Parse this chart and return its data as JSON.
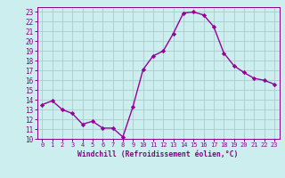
{
  "x": [
    0,
    1,
    2,
    3,
    4,
    5,
    6,
    7,
    8,
    9,
    10,
    11,
    12,
    13,
    14,
    15,
    16,
    17,
    18,
    19,
    20,
    21,
    22,
    23
  ],
  "y": [
    13.5,
    13.9,
    13.0,
    12.6,
    11.5,
    11.8,
    11.1,
    11.1,
    10.2,
    13.3,
    17.1,
    18.5,
    19.0,
    20.8,
    22.9,
    23.0,
    22.7,
    21.5,
    18.8,
    17.5,
    16.8,
    16.2,
    16.0,
    15.6
  ],
  "line_color": "#990099",
  "marker": "D",
  "marker_size": 2.2,
  "line_width": 1.0,
  "bg_color": "#cceeee",
  "grid_color": "#aacccc",
  "xlabel": "Windchill (Refroidissement éolien,°C)",
  "xlabel_color": "#880088",
  "tick_color": "#880088",
  "ylim": [
    10,
    23.5
  ],
  "xlim": [
    -0.5,
    23.5
  ],
  "yticks": [
    10,
    11,
    12,
    13,
    14,
    15,
    16,
    17,
    18,
    19,
    20,
    21,
    22,
    23
  ],
  "xticks": [
    0,
    1,
    2,
    3,
    4,
    5,
    6,
    7,
    8,
    9,
    10,
    11,
    12,
    13,
    14,
    15,
    16,
    17,
    18,
    19,
    20,
    21,
    22,
    23
  ]
}
